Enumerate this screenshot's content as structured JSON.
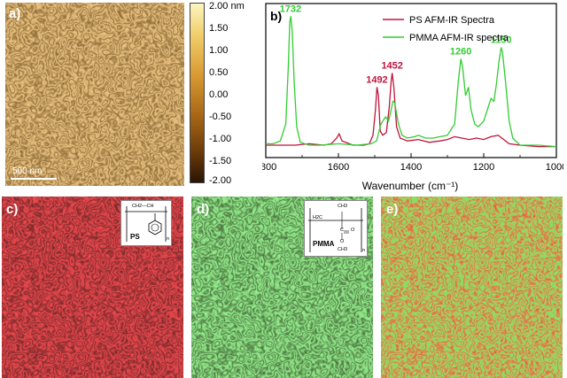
{
  "panels": {
    "a": {
      "label": "a)",
      "scalebar": "500 nm"
    },
    "b": {
      "label": "b)"
    },
    "c": {
      "label": "c)",
      "polymer": "PS"
    },
    "d": {
      "label": "d)",
      "polymer": "PMMA"
    },
    "e": {
      "label": "e)"
    }
  },
  "colorbar": {
    "ticks": [
      "2.00 nm",
      "1.50",
      "1.00",
      "0.50",
      "0.00",
      "-0.50",
      "-1.00",
      "-1.50",
      "-2.00"
    ],
    "values": [
      2.0,
      1.5,
      1.0,
      0.5,
      0.0,
      -0.5,
      -1.0,
      -1.5,
      -2.0
    ]
  },
  "structures": {
    "ps": {
      "backbone": "CH2—CH",
      "subscript": "n",
      "name": "PS"
    },
    "pmma": {
      "ch3_top": "CH3",
      "h2c": "H2C",
      "c": "C",
      "o_double": "O",
      "o_single": "O",
      "ch3_bottom": "CH3",
      "name": "PMMA",
      "subscript": "n"
    }
  },
  "colors": {
    "ps": "#c0143c",
    "pmma": "#33cc33",
    "afm_dark": "#3a1f05",
    "afm_light": "#e3b44a"
  },
  "chart_data": {
    "type": "line",
    "xlabel": "Wavenumber (cm⁻¹)",
    "xlim": [
      1800,
      1000
    ],
    "xticks": [
      1800,
      1600,
      1400,
      1200,
      1000
    ],
    "tick_labels": [
      "1800",
      "1600",
      "1400",
      "1200",
      "1000"
    ],
    "grid": false,
    "legend_position": "top-right",
    "series": [
      {
        "name": "PS AFM-IR Spectra",
        "color": "#c0143c",
        "points": [
          [
            1800,
            0.05
          ],
          [
            1760,
            0.05
          ],
          [
            1720,
            0.05
          ],
          [
            1680,
            0.06
          ],
          [
            1640,
            0.05
          ],
          [
            1620,
            0.06
          ],
          [
            1605,
            0.1
          ],
          [
            1598,
            0.13
          ],
          [
            1590,
            0.08
          ],
          [
            1560,
            0.05
          ],
          [
            1530,
            0.05
          ],
          [
            1515,
            0.06
          ],
          [
            1505,
            0.12
          ],
          [
            1498,
            0.3
          ],
          [
            1494,
            0.46
          ],
          [
            1490,
            0.4
          ],
          [
            1485,
            0.15
          ],
          [
            1478,
            0.12
          ],
          [
            1468,
            0.14
          ],
          [
            1460,
            0.32
          ],
          [
            1455,
            0.5
          ],
          [
            1452,
            0.56
          ],
          [
            1447,
            0.45
          ],
          [
            1440,
            0.18
          ],
          [
            1430,
            0.1
          ],
          [
            1410,
            0.08
          ],
          [
            1380,
            0.09
          ],
          [
            1350,
            0.07
          ],
          [
            1320,
            0.08
          ],
          [
            1300,
            0.09
          ],
          [
            1280,
            0.11
          ],
          [
            1260,
            0.1
          ],
          [
            1240,
            0.09
          ],
          [
            1220,
            0.1
          ],
          [
            1200,
            0.09
          ],
          [
            1180,
            0.11
          ],
          [
            1160,
            0.12
          ],
          [
            1150,
            0.1
          ],
          [
            1130,
            0.06
          ],
          [
            1100,
            0.05
          ],
          [
            1050,
            0.04
          ],
          [
            1000,
            0.04
          ]
        ]
      },
      {
        "name": "PMMA AFM-IR spectra",
        "color": "#33cc33",
        "points": [
          [
            1800,
            0.06
          ],
          [
            1780,
            0.06
          ],
          [
            1760,
            0.08
          ],
          [
            1745,
            0.2
          ],
          [
            1738,
            0.6
          ],
          [
            1734,
            0.92
          ],
          [
            1731,
            0.96
          ],
          [
            1727,
            0.85
          ],
          [
            1722,
            0.5
          ],
          [
            1715,
            0.18
          ],
          [
            1705,
            0.07
          ],
          [
            1680,
            0.05
          ],
          [
            1650,
            0.05
          ],
          [
            1600,
            0.06
          ],
          [
            1550,
            0.05
          ],
          [
            1510,
            0.06
          ],
          [
            1495,
            0.08
          ],
          [
            1483,
            0.2
          ],
          [
            1478,
            0.22
          ],
          [
            1470,
            0.25
          ],
          [
            1462,
            0.22
          ],
          [
            1455,
            0.3
          ],
          [
            1450,
            0.36
          ],
          [
            1445,
            0.35
          ],
          [
            1435,
            0.2
          ],
          [
            1425,
            0.12
          ],
          [
            1410,
            0.1
          ],
          [
            1390,
            0.11
          ],
          [
            1380,
            0.12
          ],
          [
            1360,
            0.1
          ],
          [
            1340,
            0.1
          ],
          [
            1320,
            0.11
          ],
          [
            1300,
            0.12
          ],
          [
            1280,
            0.2
          ],
          [
            1270,
            0.5
          ],
          [
            1263,
            0.66
          ],
          [
            1258,
            0.6
          ],
          [
            1250,
            0.4
          ],
          [
            1242,
            0.46
          ],
          [
            1235,
            0.3
          ],
          [
            1225,
            0.2
          ],
          [
            1215,
            0.18
          ],
          [
            1200,
            0.22
          ],
          [
            1190,
            0.3
          ],
          [
            1180,
            0.38
          ],
          [
            1172,
            0.36
          ],
          [
            1165,
            0.48
          ],
          [
            1158,
            0.64
          ],
          [
            1152,
            0.74
          ],
          [
            1148,
            0.7
          ],
          [
            1140,
            0.5
          ],
          [
            1130,
            0.22
          ],
          [
            1120,
            0.1
          ],
          [
            1100,
            0.05
          ],
          [
            1050,
            0.05
          ],
          [
            1000,
            0.04
          ]
        ]
      }
    ],
    "annotations": [
      {
        "text": "1732",
        "x": 1732,
        "y": 0.96,
        "color": "#33cc33"
      },
      {
        "text": "1492",
        "x": 1494,
        "y": 0.46,
        "color": "#c0143c"
      },
      {
        "text": "1452",
        "x": 1452,
        "y": 0.56,
        "color": "#c0143c"
      },
      {
        "text": "1260",
        "x": 1263,
        "y": 0.66,
        "color": "#33cc33"
      },
      {
        "text": "1150",
        "x": 1152,
        "y": 0.74,
        "color": "#33cc33"
      }
    ]
  }
}
